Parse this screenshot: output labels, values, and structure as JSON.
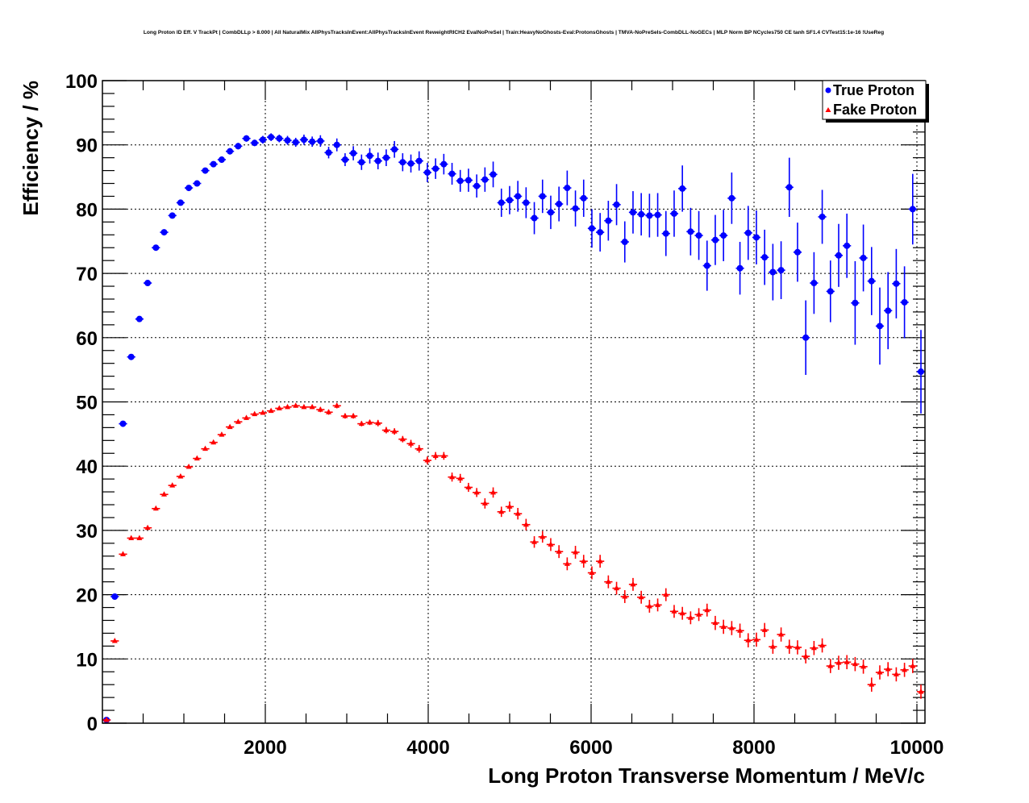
{
  "chart_data": {
    "type": "scatter",
    "title": "Long Proton ID Eff. V TrackPt | CombDLLp > 8.000 | All NaturalMix AllPhysTracksInEvent:AllPhysTracksInEvent ReweightRICH2 EvalNoPreSel | Train:HeavyNoGhosts-Eval:ProtonsGhosts | TMVA-NoPreSels-CombDLL-NoGECs | MLP Norm BP NCycles750 CE tanh SF1.4 CVTest15:1e-16 !UseReg",
    "xlabel": "Long Proton Transverse Momentum / MeV/c",
    "ylabel": "Efficiency / %",
    "xlim": [
      0,
      10100
    ],
    "ylim": [
      0,
      100
    ],
    "bin_width": 101,
    "n_bins": 100,
    "xticks": [
      2000,
      4000,
      6000,
      8000,
      10000
    ],
    "xtick_labels": [
      "2000",
      "4000",
      "6000",
      "8000",
      "10000"
    ],
    "yticks": [
      0,
      10,
      20,
      30,
      40,
      50,
      60,
      70,
      80,
      90,
      100
    ],
    "ytick_labels": [
      "0",
      "10",
      "20",
      "30",
      "40",
      "50",
      "60",
      "70",
      "80",
      "90",
      "100"
    ],
    "grid": true,
    "legend_position": "top-right",
    "series": [
      {
        "name": "True Proton",
        "color": "#0000ff",
        "marker": "circle",
        "values": [
          0.5,
          19.7,
          46.6,
          57,
          62.9,
          68.5,
          74,
          76.4,
          79,
          81,
          83.3,
          84,
          86,
          87,
          87.7,
          89,
          89.8,
          91,
          90.3,
          90.8,
          91.2,
          91,
          90.7,
          90.4,
          90.8,
          90.5,
          90.6,
          88.8,
          90,
          87.7,
          88.7,
          87.3,
          88.3,
          87.5,
          88,
          89.3,
          87.3,
          87.1,
          87.5,
          85.7,
          86.3,
          87,
          85.5,
          84.4,
          84.5,
          83.6,
          84.6,
          85.4,
          81,
          81.4,
          82,
          81,
          78.6,
          82,
          79.5,
          80.8,
          83.3,
          80.1,
          81.7,
          77,
          76.4,
          78.2,
          80.7,
          74.9,
          79.5,
          79.2,
          79,
          79.1,
          76.2,
          79.3,
          83.2,
          76.5,
          75.9,
          71.2,
          75.2,
          75.9,
          81.7,
          70.8,
          76.3,
          75.6,
          72.5,
          70.2,
          70.5,
          83.4,
          73.3,
          60,
          68.5,
          78.8,
          67.2,
          72.8,
          74.3,
          65.4,
          72.4,
          68.8,
          61.8,
          64.2,
          68.4,
          65.5,
          80,
          54.7
        ],
        "errors": [
          0.3,
          0.4,
          0.4,
          0.4,
          0.4,
          0.4,
          0.4,
          0.4,
          0.4,
          0.4,
          0.4,
          0.4,
          0.4,
          0.4,
          0.5,
          0.5,
          0.5,
          0.5,
          0.5,
          0.6,
          0.6,
          0.6,
          0.7,
          0.7,
          0.8,
          0.8,
          0.9,
          0.9,
          1,
          1,
          1.1,
          1.2,
          1.2,
          1.3,
          1.3,
          1.3,
          1.4,
          1.4,
          1.5,
          1.5,
          1.6,
          1.6,
          1.7,
          1.7,
          1.8,
          1.8,
          1.9,
          2,
          2.2,
          2.2,
          2.4,
          2.4,
          2.5,
          2.6,
          2.6,
          2.7,
          2.7,
          2.8,
          2.9,
          3,
          3,
          3.1,
          3.2,
          3.2,
          3.3,
          3.3,
          3.4,
          3.4,
          3.5,
          3.6,
          3.6,
          3.7,
          3.8,
          3.9,
          3.9,
          4,
          4,
          4.1,
          4.2,
          4.2,
          4.3,
          4.4,
          4.5,
          4.6,
          4.6,
          5.8,
          4.8,
          4.2,
          4.8,
          4.9,
          5,
          6.5,
          5.2,
          5.3,
          6,
          6,
          5.4,
          5.6,
          5.5,
          6.5
        ]
      },
      {
        "name": "Fake Proton",
        "color": "#ff0000",
        "marker": "triangle",
        "values": [
          0.5,
          12.8,
          26.3,
          28.8,
          28.8,
          30.4,
          33.4,
          35.6,
          37.0,
          38.4,
          39.9,
          41.2,
          42.7,
          43.7,
          44.9,
          46.1,
          46.9,
          47.5,
          48.1,
          48.3,
          48.6,
          49.0,
          49.2,
          49.4,
          49.2,
          49.2,
          48.8,
          48.4,
          49.4,
          47.8,
          47.8,
          46.6,
          46.8,
          46.7,
          45.6,
          45.4,
          44.2,
          43.5,
          42.7,
          40.9,
          41.6,
          41.6,
          38.3,
          38.1,
          36.7,
          35.9,
          34.2,
          35.9,
          32.9,
          33.7,
          32.6,
          30.9,
          28.2,
          29.0,
          27.8,
          26.7,
          24.8,
          26.6,
          25.2,
          23.4,
          25.2,
          22.0,
          21.0,
          19.7,
          21.6,
          19.6,
          18.2,
          18.4,
          20.0,
          17.4,
          17.1,
          16.4,
          16.9,
          17.6,
          15.6,
          15.0,
          14.8,
          14.4,
          12.9,
          13.0,
          14.5,
          11.9,
          13.8,
          11.9,
          11.8,
          10.4,
          11.7,
          12.1,
          8.9,
          9.4,
          9.5,
          9.2,
          8.8,
          6.0,
          7.9,
          8.4,
          7.6,
          8.3,
          8.9,
          4.9
        ],
        "errors": [
          0.2,
          0.3,
          0.3,
          0.3,
          0.3,
          0.3,
          0.3,
          0.3,
          0.3,
          0.3,
          0.3,
          0.3,
          0.3,
          0.3,
          0.3,
          0.3,
          0.3,
          0.3,
          0.3,
          0.3,
          0.3,
          0.3,
          0.3,
          0.3,
          0.3,
          0.3,
          0.4,
          0.4,
          0.4,
          0.4,
          0.4,
          0.4,
          0.4,
          0.5,
          0.5,
          0.5,
          0.5,
          0.6,
          0.6,
          0.6,
          0.6,
          0.6,
          0.7,
          0.7,
          0.7,
          0.7,
          0.8,
          0.8,
          0.8,
          0.8,
          0.9,
          0.9,
          0.9,
          0.9,
          1,
          1,
          1,
          1,
          1,
          1,
          1,
          1,
          1,
          1,
          1,
          1,
          1,
          1,
          1,
          1,
          1,
          1,
          1,
          1,
          1.1,
          1.1,
          1.1,
          1.1,
          1.1,
          1.1,
          1.1,
          1.1,
          1.1,
          1.1,
          1.1,
          1.1,
          1.1,
          1.1,
          1.1,
          1.1,
          1.1,
          1.1,
          1.1,
          1.1,
          1.1,
          1.1,
          1.1,
          1.1,
          1.1,
          1.1
        ]
      }
    ]
  }
}
